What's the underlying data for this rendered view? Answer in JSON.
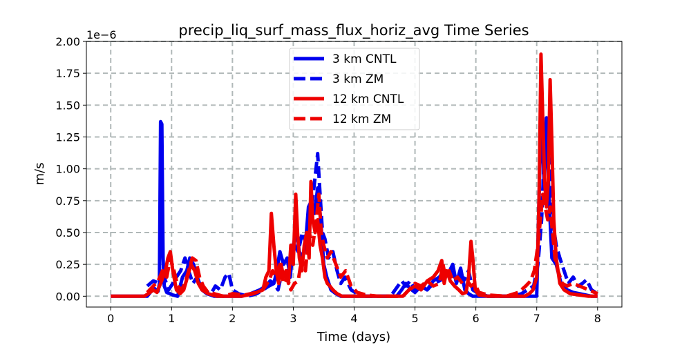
{
  "chart_data": {
    "type": "line",
    "title": "precip_liq_surf_mass_flux_horiz_avg Time Series",
    "xlabel": "Time (days)",
    "ylabel": "m/s",
    "offset_text": "1e−6",
    "xlim": [
      -0.4,
      8.4
    ],
    "ylim": [
      -8.5e-08,
      2e-06
    ],
    "xticks": [
      0,
      1,
      2,
      3,
      4,
      5,
      6,
      7,
      8
    ],
    "xtick_labels": [
      "0",
      "1",
      "2",
      "3",
      "4",
      "5",
      "6",
      "7",
      "8"
    ],
    "yticks": [
      0,
      2.5e-07,
      5e-07,
      7.5e-07,
      1e-06,
      1.25e-06,
      1.5e-06,
      1.75e-06,
      2e-06
    ],
    "ytick_labels": [
      "0.00",
      "0.25",
      "0.50",
      "0.75",
      "1.00",
      "1.25",
      "1.50",
      "1.75",
      "2.00"
    ],
    "grid": true,
    "legend_position": "top-center",
    "series": [
      {
        "name": "3 km CNTL",
        "color": "#0000ee",
        "style": "solid",
        "x": [
          0.0,
          0.6,
          0.65,
          0.72,
          0.78,
          0.8,
          0.82,
          0.84,
          0.86,
          0.88,
          0.92,
          0.97,
          1.02,
          1.1,
          1.18,
          1.25,
          1.3,
          1.36,
          1.42,
          1.5,
          1.58,
          1.7,
          1.85,
          2.0,
          2.15,
          2.3,
          2.45,
          2.55,
          2.62,
          2.68,
          2.72,
          2.78,
          2.84,
          2.9,
          2.95,
          3.0,
          3.05,
          3.1,
          3.15,
          3.2,
          3.25,
          3.3,
          3.35,
          3.4,
          3.45,
          3.5,
          3.55,
          3.62,
          3.7,
          3.78,
          3.85,
          3.95,
          4.1,
          4.3,
          4.5,
          4.7,
          4.78,
          4.85,
          4.92,
          5.0,
          5.1,
          5.2,
          5.3,
          5.4,
          5.48,
          5.55,
          5.62,
          5.68,
          5.75,
          5.82,
          5.88,
          5.95,
          6.05,
          6.2,
          6.4,
          6.6,
          6.8,
          6.95,
          7.0,
          7.05,
          7.08,
          7.12,
          7.16,
          7.2,
          7.25,
          7.32,
          7.4,
          7.5,
          7.6,
          7.7,
          7.8,
          7.9,
          8.0
        ],
        "y": [
          0,
          0,
          3e-08,
          6e-08,
          4e-08,
          1e-07,
          1.37e-06,
          1.35e-06,
          3e-07,
          8e-08,
          3e-08,
          2e-08,
          1e-08,
          0,
          1.5e-07,
          2e-07,
          3e-07,
          2.5e-07,
          1.5e-07,
          5e-08,
          2e-08,
          0,
          0,
          0,
          0,
          2e-08,
          5e-08,
          8e-08,
          1.2e-07,
          1e-07,
          1.8e-07,
          3.5e-07,
          2.5e-07,
          3e-07,
          1.5e-07,
          4e-07,
          5e-07,
          3.5e-07,
          3e-07,
          4e-07,
          7e-07,
          7.5e-07,
          6.5e-07,
          8.5e-07,
          6e-07,
          2.5e-07,
          1.5e-07,
          5e-08,
          2e-08,
          0,
          0,
          0,
          0,
          0,
          0,
          0,
          5e-08,
          1e-07,
          6e-08,
          3e-08,
          8e-08,
          5e-08,
          1.2e-07,
          1.5e-07,
          2e-07,
          1.8e-07,
          2.5e-07,
          1e-07,
          2.2e-07,
          5e-08,
          2e-08,
          0,
          0,
          0,
          0,
          0,
          0,
          0,
          0,
          1e-06,
          1.47e-06,
          9e-07,
          1.4e-06,
          8e-07,
          3e-07,
          2.5e-07,
          1e-07,
          5e-08,
          3e-08,
          2e-08,
          1e-08,
          0,
          0
        ]
      },
      {
        "name": "3 km ZM",
        "color": "#0000ee",
        "style": "dashed",
        "x": [
          0.6,
          0.7,
          0.8,
          0.88,
          0.95,
          1.02,
          1.08,
          1.15,
          1.22,
          1.28,
          1.35,
          1.42,
          1.5,
          1.58,
          1.65,
          1.72,
          1.8,
          1.88,
          1.94,
          2.0,
          2.1,
          2.25,
          2.4,
          2.5,
          2.6,
          2.68,
          2.75,
          2.82,
          2.88,
          2.95,
          3.02,
          3.08,
          3.15,
          3.22,
          3.28,
          3.35,
          3.4,
          3.44,
          3.48,
          3.52,
          3.58,
          3.65,
          3.72,
          3.78,
          3.85,
          3.95,
          4.05,
          4.2,
          4.4,
          4.6,
          4.78,
          4.85,
          4.92,
          5.0,
          5.1,
          5.2,
          5.3,
          5.4,
          5.5,
          5.58,
          5.65,
          5.72,
          5.8,
          5.88,
          5.95,
          6.05,
          6.2,
          6.4,
          6.6,
          6.75,
          6.85,
          6.95,
          7.02,
          7.08,
          7.14,
          7.2,
          7.26,
          7.32,
          7.38,
          7.45,
          7.52,
          7.6,
          7.68,
          7.75,
          7.82,
          7.9,
          8.0
        ],
        "y": [
          8e-08,
          1.2e-07,
          1e-07,
          1.5e-07,
          5e-08,
          1e-07,
          1.5e-07,
          2e-07,
          3e-07,
          2e-07,
          1e-07,
          1.5e-07,
          5e-08,
          3e-08,
          2e-08,
          8e-08,
          5e-08,
          1.5e-07,
          1.8e-07,
          5e-08,
          2e-08,
          0,
          2e-08,
          5e-08,
          8e-08,
          1e-07,
          5e-08,
          2e-07,
          1.2e-07,
          3e-07,
          4e-07,
          3.5e-07,
          5e-07,
          4e-07,
          6e-07,
          9e-07,
          1.12e-06,
          8e-07,
          5e-07,
          4.5e-07,
          3e-07,
          3.5e-07,
          2e-07,
          1e-07,
          1.5e-07,
          5e-08,
          2e-08,
          0,
          0,
          0,
          1.2e-07,
          8e-08,
          1.2e-07,
          5e-08,
          8e-08,
          5e-08,
          1e-07,
          1.2e-07,
          1.5e-07,
          2e-07,
          1.5e-07,
          1.8e-07,
          1.2e-07,
          2e-07,
          5e-08,
          2e-08,
          0,
          0,
          0,
          2e-08,
          5e-08,
          8e-08,
          2.5e-07,
          6e-07,
          1.3e-06,
          1.1e-06,
          6e-07,
          4e-07,
          3e-07,
          2e-07,
          1e-07,
          1.5e-07,
          8e-08,
          1e-07,
          1.3e-07,
          5e-08,
          2e-08
        ]
      },
      {
        "name": "12 km CNTL",
        "color": "#ee0000",
        "style": "solid",
        "x": [
          0.0,
          0.55,
          0.62,
          0.7,
          0.76,
          0.82,
          0.86,
          0.9,
          0.94,
          0.98,
          1.02,
          1.08,
          1.14,
          1.2,
          1.26,
          1.32,
          1.38,
          1.44,
          1.5,
          1.6,
          1.75,
          1.95,
          2.15,
          2.35,
          2.5,
          2.55,
          2.6,
          2.64,
          2.68,
          2.72,
          2.76,
          2.8,
          2.84,
          2.88,
          2.92,
          2.96,
          3.0,
          3.04,
          3.07,
          3.1,
          3.14,
          3.18,
          3.22,
          3.26,
          3.29,
          3.32,
          3.36,
          3.4,
          3.44,
          3.48,
          3.52,
          3.56,
          3.6,
          3.65,
          3.72,
          3.8,
          3.9,
          4.1,
          4.4,
          4.8,
          4.9,
          5.0,
          5.1,
          5.2,
          5.3,
          5.38,
          5.44,
          5.48,
          5.52,
          5.58,
          5.65,
          5.72,
          5.78,
          5.84,
          5.88,
          5.92,
          5.95,
          5.99,
          6.05,
          6.2,
          6.5,
          6.8,
          6.88,
          6.94,
          7.0,
          7.02,
          7.04,
          7.07,
          7.1,
          7.13,
          7.16,
          7.19,
          7.22,
          7.25,
          7.28,
          7.32,
          7.38,
          7.45,
          7.55,
          7.7,
          7.85,
          8.0
        ],
        "y": [
          0,
          0,
          2e-08,
          5e-08,
          3e-08,
          1e-07,
          1.5e-07,
          2e-07,
          3e-07,
          3.5e-07,
          2e-07,
          5e-08,
          2e-08,
          5e-08,
          1.5e-07,
          2.5e-07,
          2e-07,
          1e-07,
          5e-08,
          2e-08,
          0,
          0,
          0,
          2e-08,
          5e-08,
          1.5e-07,
          2e-07,
          6.5e-07,
          4e-07,
          2e-07,
          1e-07,
          2.5e-07,
          1.5e-07,
          2e-07,
          1e-07,
          4e-07,
          2.5e-07,
          8e-07,
          5e-07,
          3e-07,
          2e-07,
          4e-07,
          5e-07,
          3e-07,
          9e-07,
          6e-07,
          5e-07,
          6e-07,
          4e-07,
          3e-07,
          1.5e-07,
          1e-07,
          8e-08,
          5e-08,
          2e-08,
          0,
          0,
          0,
          0,
          0,
          5e-08,
          8e-08,
          5e-08,
          1.2e-07,
          1.5e-07,
          2e-07,
          2.8e-07,
          1e-07,
          2e-07,
          1.2e-07,
          8e-08,
          5e-08,
          2e-08,
          3e-08,
          1.5e-07,
          4.3e-07,
          3e-07,
          5e-08,
          1e-08,
          0,
          0,
          0,
          2e-08,
          5e-08,
          1.5e-07,
          4e-07,
          8e-07,
          1.9e-06,
          1.4e-06,
          9e-07,
          7e-07,
          9e-07,
          1.7e-06,
          1.2e-06,
          6e-07,
          3e-07,
          1e-07,
          5e-08,
          2e-08,
          1e-08,
          0,
          0
        ]
      },
      {
        "name": "12 km ZM",
        "color": "#ee0000",
        "style": "dashed",
        "x": [
          0.6,
          0.7,
          0.78,
          0.85,
          0.92,
          0.98,
          1.04,
          1.1,
          1.16,
          1.22,
          1.28,
          1.34,
          1.4,
          1.46,
          1.52,
          1.6,
          1.7,
          1.85,
          2.0,
          2.2,
          2.4,
          2.5,
          2.6,
          2.66,
          2.72,
          2.78,
          2.84,
          2.9,
          2.96,
          3.02,
          3.08,
          3.14,
          3.2,
          3.26,
          3.32,
          3.38,
          3.42,
          3.46,
          3.5,
          3.56,
          3.62,
          3.7,
          3.78,
          3.86,
          3.95,
          4.05,
          4.2,
          4.4,
          4.8,
          4.9,
          5.0,
          5.1,
          5.2,
          5.3,
          5.4,
          5.46,
          5.5,
          5.56,
          5.62,
          5.7,
          5.78,
          5.86,
          5.92,
          5.98,
          6.05,
          6.2,
          6.5,
          6.7,
          6.82,
          6.9,
          6.96,
          7.02,
          7.06,
          7.1,
          7.14,
          7.18,
          7.22,
          7.26,
          7.3,
          7.35,
          7.42,
          7.5,
          7.6,
          7.7,
          7.8,
          7.9,
          8.0
        ],
        "y": [
          3e-08,
          8e-08,
          1.2e-07,
          2e-07,
          1.5e-07,
          3e-07,
          2e-07,
          8e-08,
          5e-08,
          1e-07,
          2e-07,
          3e-07,
          2.8e-07,
          1.5e-07,
          8e-08,
          3e-08,
          2e-08,
          0,
          2e-08,
          1e-08,
          3e-08,
          5e-08,
          1.2e-07,
          2e-07,
          1.5e-07,
          2.5e-07,
          1e-07,
          1.5e-07,
          5e-08,
          1e-07,
          1.2e-07,
          3e-07,
          2e-07,
          5e-07,
          4e-07,
          6e-07,
          8e-07,
          5e-07,
          4e-07,
          3e-07,
          3.5e-07,
          2.5e-07,
          1.5e-07,
          2e-07,
          8e-08,
          3e-08,
          1e-08,
          0,
          0,
          5e-08,
          1e-07,
          8e-08,
          1.2e-07,
          8e-08,
          1e-07,
          2.5e-07,
          1.5e-07,
          2e-07,
          1.2e-07,
          1.5e-07,
          1e-07,
          1.2e-07,
          8e-08,
          1e-07,
          3e-08,
          1e-08,
          0,
          3e-08,
          8e-08,
          1.2e-07,
          2e-07,
          4e-07,
          6e-07,
          8e-07,
          7e-07,
          6e-07,
          7e-07,
          5e-07,
          3e-07,
          2e-07,
          1e-07,
          8e-08,
          1e-07,
          8e-08,
          6e-08,
          4e-08,
          2e-08
        ]
      }
    ]
  }
}
